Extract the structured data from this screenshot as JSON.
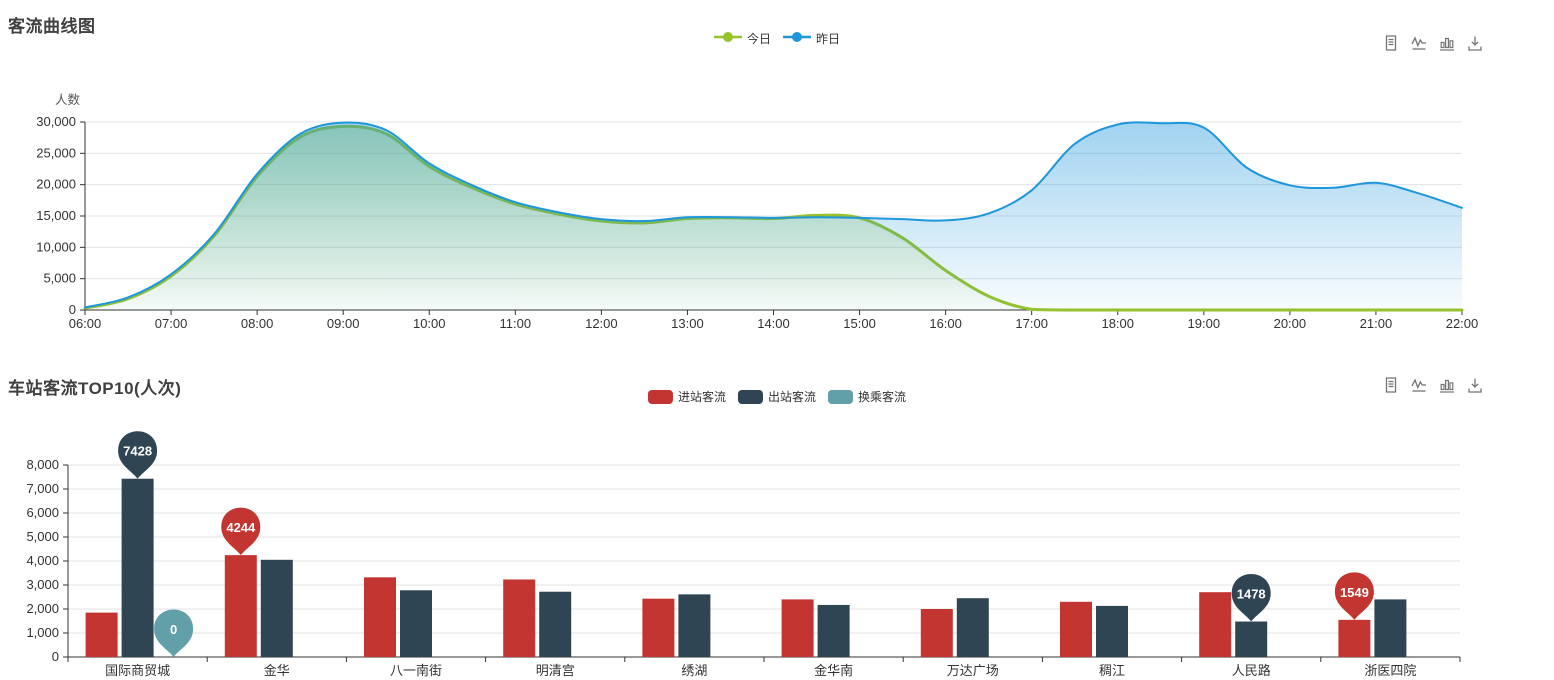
{
  "page": {
    "background": "#ffffff"
  },
  "toolbox": {
    "icons": [
      {
        "name": "data-view"
      },
      {
        "name": "switch-to-line"
      },
      {
        "name": "switch-to-bar"
      },
      {
        "name": "save-as-image"
      }
    ]
  },
  "chart_data": [
    {
      "type": "line",
      "title": "客流曲线图",
      "ylabel": "人数",
      "legend_position": "top-center",
      "grid": true,
      "ylim": [
        0,
        30000
      ],
      "y_ticks": [
        0,
        5000,
        10000,
        15000,
        20000,
        25000,
        30000
      ],
      "y_tick_labels": [
        "0",
        "5,000",
        "10,000",
        "15,000",
        "20,000",
        "25,000",
        "30,000"
      ],
      "x_tick_labels": [
        "06:00",
        "07:00",
        "08:00",
        "09:00",
        "10:00",
        "11:00",
        "12:00",
        "13:00",
        "14:00",
        "15:00",
        "16:00",
        "17:00",
        "18:00",
        "19:00",
        "20:00",
        "21:00",
        "22:00"
      ],
      "x": [
        "06:00",
        "06:30",
        "07:00",
        "07:30",
        "08:00",
        "08:30",
        "09:00",
        "09:30",
        "10:00",
        "10:30",
        "11:00",
        "11:30",
        "12:00",
        "12:30",
        "13:00",
        "13:30",
        "14:00",
        "14:30",
        "15:00",
        "15:30",
        "16:00",
        "16:30",
        "17:00",
        "17:30",
        "18:00",
        "18:30",
        "19:00",
        "19:30",
        "20:00",
        "20:30",
        "21:00",
        "21:30",
        "22:00"
      ],
      "series": [
        {
          "name": "今日",
          "color": "#96c32b",
          "smooth": true,
          "area": true,
          "values": [
            300,
            1800,
            5400,
            11800,
            21300,
            27600,
            29300,
            28100,
            22900,
            19500,
            16900,
            15300,
            14200,
            13900,
            14600,
            14700,
            14600,
            15100,
            14700,
            11500,
            6300,
            2200,
            100,
            0,
            0,
            0,
            0,
            0,
            0,
            0,
            0,
            0,
            0
          ]
        },
        {
          "name": "昨日",
          "color": "#1e96dc",
          "smooth": true,
          "area": true,
          "values": [
            400,
            2000,
            5700,
            12100,
            21700,
            28100,
            29900,
            28700,
            23400,
            19900,
            17200,
            15600,
            14500,
            14200,
            14800,
            14800,
            14700,
            14800,
            14700,
            14500,
            14300,
            15400,
            19100,
            26500,
            29600,
            29800,
            29100,
            22700,
            19900,
            19500,
            20300,
            18600,
            16300
          ]
        }
      ]
    },
    {
      "type": "bar",
      "title": "车站客流TOP10(人次)",
      "legend_position": "top-center",
      "grid": true,
      "ylim": [
        0,
        8000
      ],
      "y_ticks": [
        0,
        1000,
        2000,
        3000,
        4000,
        5000,
        6000,
        7000,
        8000
      ],
      "y_tick_labels": [
        "0",
        "1,000",
        "2,000",
        "3,000",
        "4,000",
        "5,000",
        "6,000",
        "7,000",
        "8,000"
      ],
      "categories": [
        "国际商贸城",
        "金华",
        "八一南街",
        "明清宫",
        "绣湖",
        "金华南",
        "万达广场",
        "稠江",
        "人民路",
        "浙医四院"
      ],
      "series": [
        {
          "name": "进站客流",
          "color": "#c23531",
          "values": [
            1850,
            4244,
            3320,
            3230,
            2430,
            2400,
            2000,
            2300,
            2700,
            1549
          ]
        },
        {
          "name": "出站客流",
          "color": "#2f4554",
          "values": [
            7428,
            4050,
            2780,
            2720,
            2610,
            2170,
            2450,
            2130,
            1478,
            2400
          ]
        },
        {
          "name": "换乘客流",
          "color": "#61a0a8",
          "values": [
            0,
            0,
            0,
            0,
            0,
            0,
            0,
            0,
            0,
            0
          ]
        }
      ],
      "mark_points": [
        {
          "series": "出站客流",
          "category": "国际商贸城",
          "kind": "max",
          "value": 7428,
          "label": "7428"
        },
        {
          "series": "换乘客流",
          "category": "国际商贸城",
          "kind": "max",
          "value": 0,
          "label": "0"
        },
        {
          "series": "进站客流",
          "category": "金华",
          "kind": "max",
          "value": 4244,
          "label": "4244"
        },
        {
          "series": "出站客流",
          "category": "人民路",
          "kind": "min",
          "value": 1478,
          "label": "1478"
        },
        {
          "series": "进站客流",
          "category": "浙医四院",
          "kind": "min",
          "value": 1549,
          "label": "1549"
        }
      ]
    }
  ]
}
